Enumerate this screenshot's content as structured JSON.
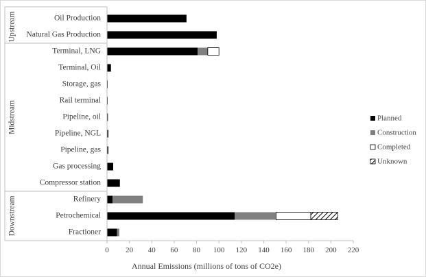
{
  "chart_data": {
    "type": "bar",
    "orientation": "horizontal",
    "stacked": true,
    "xlabel": "Annual Emissions (millions  of tons of CO2e)",
    "xlim": [
      0,
      220
    ],
    "xticks": [
      0,
      20,
      40,
      60,
      80,
      100,
      120,
      140,
      160,
      180,
      200,
      220
    ],
    "grid": false,
    "legend_position": "right",
    "groups": [
      {
        "name": "Upstream",
        "categories": [
          "Oil Production",
          "Natural Gas Production"
        ]
      },
      {
        "name": "Midstream",
        "categories": [
          "Terminal, LNG",
          "Terminal, Oil",
          "Storage, gas",
          "Rail terminal",
          "Pipeline, oil",
          "Pipeline, NGL",
          "Pipeline, gas",
          "Gas processing",
          "Compressor station"
        ]
      },
      {
        "name": "Downstream",
        "categories": [
          "Refinery",
          "Petrochemical",
          "Fractioner"
        ]
      }
    ],
    "categories": [
      "Oil Production",
      "Natural Gas Production",
      "Terminal, LNG",
      "Terminal, Oil",
      "Storage, gas",
      "Rail terminal",
      "Pipeline, oil",
      "Pipeline, NGL",
      "Pipeline, gas",
      "Gas processing",
      "Compressor station",
      "Refinery",
      "Petrochemical",
      "Fractioner"
    ],
    "series": [
      {
        "name": "Planned",
        "color": "#000000",
        "pattern": "solid",
        "values": [
          71,
          98,
          81,
          3.5,
          0.6,
          0.6,
          0.8,
          1.2,
          1.2,
          5.5,
          11.5,
          5,
          114,
          9
        ]
      },
      {
        "name": "Construction",
        "color": "#808080",
        "pattern": "solid",
        "values": [
          0,
          0,
          9,
          0,
          0,
          0,
          0,
          0,
          0,
          0,
          0,
          27,
          37,
          2
        ]
      },
      {
        "name": "Completed",
        "color": "#ffffff",
        "pattern": "outline",
        "values": [
          0,
          0,
          10,
          0,
          0,
          0,
          0,
          0,
          0,
          0,
          0,
          0,
          31,
          0
        ]
      },
      {
        "name": "Unknown",
        "color": "#000000",
        "pattern": "hatch",
        "values": [
          0,
          0,
          0,
          0,
          0,
          0,
          0,
          0,
          0,
          0,
          0,
          0,
          24,
          0
        ]
      }
    ]
  }
}
